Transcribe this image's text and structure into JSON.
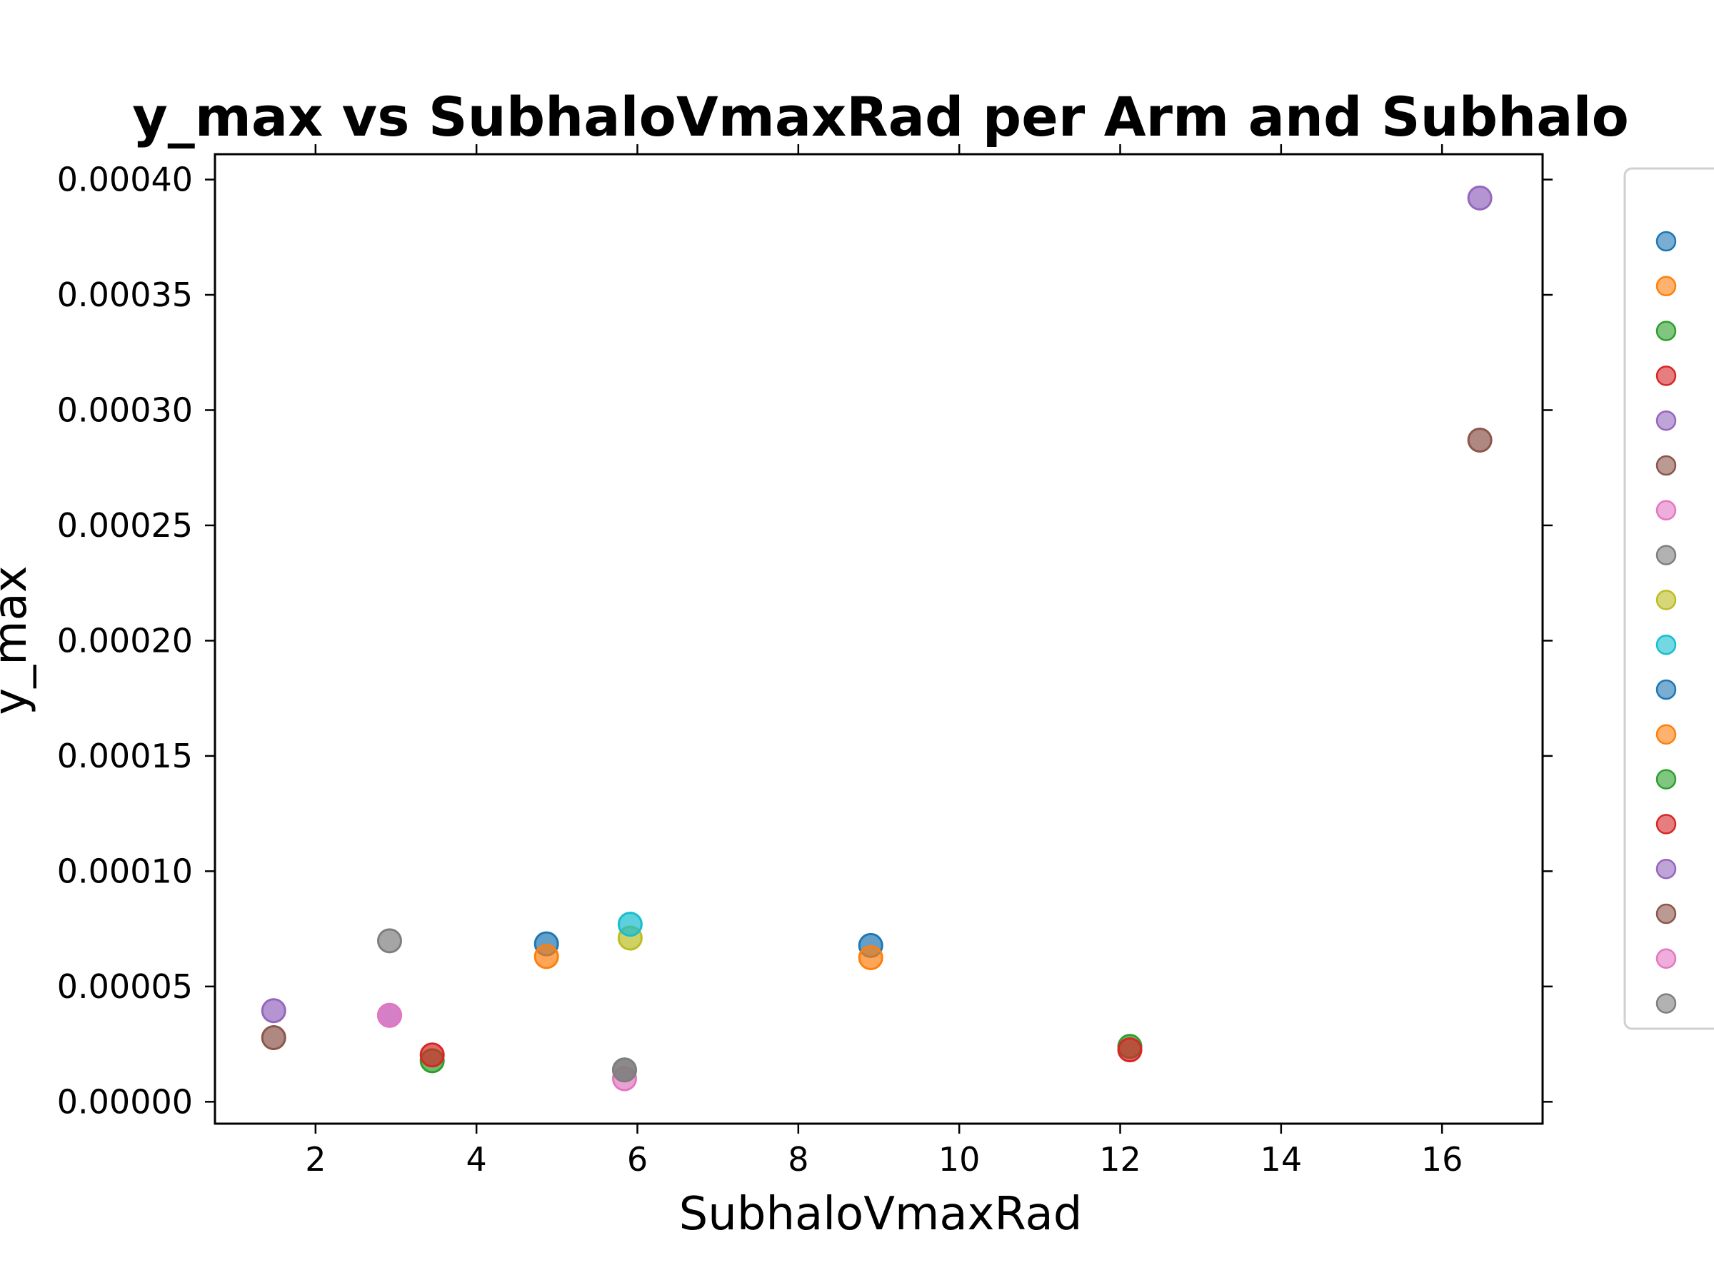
{
  "chart_data": {
    "type": "scatter",
    "title": "y_max vs SubhaloVmaxRad per Arm and Subhalo",
    "xlabel": "SubhaloVmaxRad",
    "ylabel": "y_max",
    "xlim": [
      0.75,
      17.25
    ],
    "ylim": [
      -9.5e-06,
      0.000411
    ],
    "x_ticks": [
      "2",
      "4",
      "6",
      "8",
      "10",
      "12",
      "14",
      "16"
    ],
    "y_ticks": [
      "0.00000",
      "0.00005",
      "0.00010",
      "0.00015",
      "0.00020",
      "0.00025",
      "0.00030",
      "0.00035",
      "0.00040"
    ],
    "grid": false,
    "legend_position": "right, outside plot",
    "series": [
      {
        "color": "#1f77b4",
        "points": [
          [
            4.87,
            6.85e-05
          ]
        ]
      },
      {
        "color": "#ff7f0e",
        "points": [
          [
            4.87,
            6.3e-05
          ]
        ]
      },
      {
        "color": "#2ca02c",
        "points": [
          [
            3.45,
            1.78e-05
          ]
        ]
      },
      {
        "color": "#d62728",
        "points": [
          [
            3.45,
            2.03e-05
          ]
        ]
      },
      {
        "color": "#9467bd",
        "points": [
          [
            2.92,
            3.75e-05
          ]
        ]
      },
      {
        "color": "#8c564b",
        "points": [
          [
            1.48,
            2.78e-05
          ]
        ]
      },
      {
        "color": "#e377c2",
        "points": [
          [
            5.84,
            1e-05
          ]
        ]
      },
      {
        "color": "#7f7f7f",
        "points": [
          [
            5.84,
            1.38e-05
          ]
        ]
      },
      {
        "color": "#bcbd22",
        "points": [
          [
            5.91,
            7.1e-05
          ]
        ]
      },
      {
        "color": "#17becf",
        "points": [
          [
            5.91,
            7.7e-05
          ]
        ]
      },
      {
        "color": "#1f77b4",
        "points": [
          [
            8.9,
            6.78e-05
          ]
        ]
      },
      {
        "color": "#ff7f0e",
        "points": [
          [
            8.9,
            6.25e-05
          ]
        ]
      },
      {
        "color": "#2ca02c",
        "points": [
          [
            12.12,
            2.4e-05
          ]
        ]
      },
      {
        "color": "#d62728",
        "points": [
          [
            12.12,
            2.25e-05
          ]
        ]
      },
      {
        "color": "#9467bd",
        "points": [
          [
            16.47,
            0.000392
          ],
          [
            1.48,
            3.95e-05
          ]
        ]
      },
      {
        "color": "#8c564b",
        "points": [
          [
            16.47,
            0.000287
          ]
        ]
      },
      {
        "color": "#e377c2",
        "points": [
          [
            2.92,
            3.75e-05
          ]
        ]
      },
      {
        "color": "#7f7f7f",
        "points": [
          [
            2.92,
            6.98e-05
          ],
          [
            5.84,
            1.38e-05
          ]
        ]
      }
    ]
  }
}
